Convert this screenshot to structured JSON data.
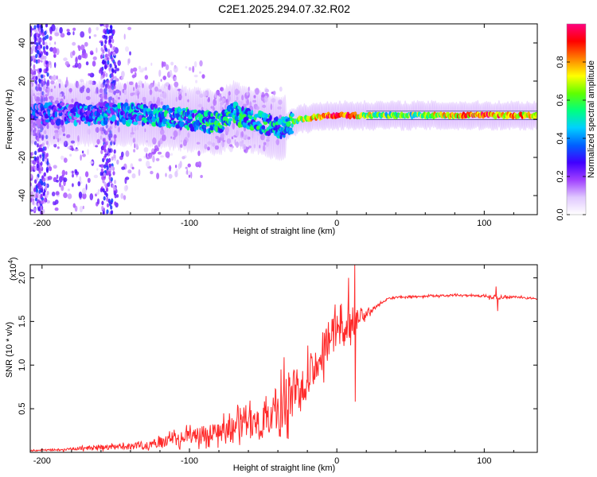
{
  "figure_title": "C2E1.2025.294.07.32.R02",
  "chart_data": [
    {
      "type": "heatmap",
      "title": "C2E1.2025.294.07.32.R02",
      "xlabel": "Height of straight line (km)",
      "ylabel": "Frequency (Hz)",
      "xlim": [
        -208,
        136
      ],
      "ylim": [
        -50,
        50
      ],
      "xticks": [
        -200,
        -100,
        0,
        100
      ],
      "yticks": [
        -40,
        -20,
        0,
        20,
        40
      ],
      "colorbar": {
        "label": "Normalized spectral amplitude",
        "range": [
          0.0,
          1.0
        ],
        "ticks": [
          "0.0",
          "0.2",
          "0.4",
          "0.6",
          "0.8"
        ],
        "colormap": [
          "#ffffff",
          "#e0c8ff",
          "#a040ff",
          "#4000ff",
          "#0060ff",
          "#00d0ff",
          "#00ff80",
          "#60ff00",
          "#ffff00",
          "#ff8000",
          "#ff0000",
          "#ff0080"
        ]
      },
      "ridge": {
        "x": [
          -205,
          -180,
          -150,
          -120,
          -100,
          -80,
          -70,
          -60,
          -50,
          -40,
          -33,
          -25,
          -15,
          -5,
          0,
          10,
          20,
          40,
          60,
          80,
          100,
          120,
          136
        ],
        "frequency": [
          3,
          3,
          3,
          2,
          0,
          -2,
          3,
          0,
          -2,
          -5,
          -3,
          0,
          1,
          2,
          2,
          2,
          2,
          2,
          2,
          2,
          2,
          2,
          2
        ],
        "amplitude": [
          0.25,
          0.3,
          0.35,
          0.4,
          0.4,
          0.45,
          0.45,
          0.42,
          0.45,
          0.4,
          0.45,
          0.6,
          0.75,
          0.85,
          0.9,
          0.8,
          0.65,
          0.55,
          0.6,
          0.75,
          0.85,
          0.75,
          0.7
        ]
      }
    },
    {
      "type": "line",
      "xlabel": "Height of straight line (km)",
      "ylabel": "SNR (10 * v/v)",
      "y_multiplier": "(x10",
      "y_multiplier_exp": "4",
      "y_multiplier_close": ")",
      "xlim": [
        -208,
        136
      ],
      "ylim": [
        0,
        2.15
      ],
      "xticks": [
        -200,
        -100,
        0,
        100
      ],
      "yticks": [
        0.5,
        1.0,
        1.5,
        2.0
      ],
      "ytick_labels": [
        "0.5",
        "1.0",
        "1.5",
        "2.0"
      ],
      "color": "#ff2a2a",
      "series": [
        {
          "name": "SNR",
          "x": [
            -208,
            -190,
            -170,
            -150,
            -130,
            -115,
            -100,
            -90,
            -80,
            -70,
            -60,
            -50,
            -45,
            -40,
            -35,
            -30,
            -25,
            -20,
            -15,
            -10,
            -5,
            0,
            5,
            10,
            15,
            20,
            25,
            30,
            35,
            40,
            60,
            80,
            100,
            105,
            110,
            120,
            136
          ],
          "base": [
            0.02,
            0.03,
            0.05,
            0.06,
            0.08,
            0.13,
            0.18,
            0.22,
            0.24,
            0.27,
            0.32,
            0.38,
            0.42,
            0.5,
            0.58,
            0.67,
            0.8,
            0.9,
            1.0,
            1.15,
            1.3,
            1.4,
            1.45,
            1.5,
            1.55,
            1.6,
            1.65,
            1.72,
            1.76,
            1.78,
            1.79,
            1.8,
            1.79,
            1.78,
            1.77,
            1.78,
            1.76
          ],
          "spread": [
            0.01,
            0.02,
            0.04,
            0.05,
            0.08,
            0.12,
            0.15,
            0.18,
            0.2,
            0.25,
            0.3,
            0.35,
            0.45,
            0.5,
            0.55,
            0.55,
            0.5,
            0.45,
            0.45,
            0.4,
            0.4,
            0.35,
            0.3,
            0.3,
            0.2,
            0.1,
            0.05,
            0.03,
            0.02,
            0.02,
            0.02,
            0.02,
            0.02,
            0.05,
            0.03,
            0.02,
            0.02
          ],
          "peaks": [
            {
              "x": 8,
              "y": 2.0
            },
            {
              "x": 12,
              "y": 2.15
            },
            {
              "x": 12.5,
              "y": 0.58
            },
            {
              "x": 108,
              "y": 1.9
            },
            {
              "x": 109,
              "y": 1.62
            }
          ]
        }
      ]
    }
  ]
}
